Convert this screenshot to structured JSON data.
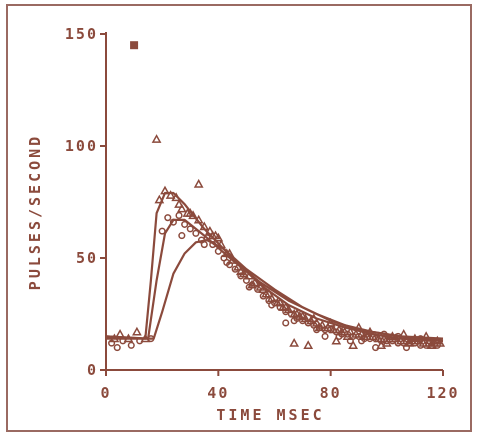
{
  "chart_data": {
    "type": "scatter",
    "title": "",
    "xlabel": "TIME MSEC",
    "ylabel": "PULSES/SECOND",
    "xlim": [
      0,
      120
    ],
    "ylim": [
      0,
      150
    ],
    "xticks": [
      "0",
      "40",
      "80",
      "120"
    ],
    "yticks": [
      "0",
      "50",
      "100",
      "150"
    ],
    "grid": false,
    "legend": "none",
    "colors": {
      "ink": "#8b4a3c",
      "frame": "#9a6a62"
    },
    "series": [
      {
        "kind": "line",
        "values": [
          [
            0,
            15
          ],
          [
            14,
            14
          ],
          [
            16,
            40
          ],
          [
            18,
            70
          ],
          [
            21,
            79
          ],
          [
            24,
            79
          ],
          [
            28,
            74
          ],
          [
            35,
            63
          ],
          [
            45,
            50
          ],
          [
            55,
            38
          ],
          [
            65,
            29
          ],
          [
            75,
            23
          ],
          [
            85,
            19
          ],
          [
            95,
            16
          ],
          [
            105,
            14
          ],
          [
            120,
            13
          ]
        ]
      },
      {
        "kind": "line",
        "values": [
          [
            0,
            15
          ],
          [
            15,
            14
          ],
          [
            18,
            40
          ],
          [
            21,
            61
          ],
          [
            24,
            67
          ],
          [
            28,
            67
          ],
          [
            35,
            60
          ],
          [
            45,
            49
          ],
          [
            55,
            39
          ],
          [
            65,
            31
          ],
          [
            75,
            25
          ],
          [
            85,
            20
          ],
          [
            95,
            17
          ],
          [
            105,
            15
          ],
          [
            120,
            14
          ]
        ]
      },
      {
        "kind": "line",
        "values": [
          [
            0,
            14
          ],
          [
            17,
            14
          ],
          [
            20,
            26
          ],
          [
            24,
            43
          ],
          [
            28,
            52
          ],
          [
            32,
            57
          ],
          [
            36,
            58
          ],
          [
            42,
            54
          ],
          [
            50,
            45
          ],
          [
            60,
            36
          ],
          [
            70,
            28
          ],
          [
            80,
            22
          ],
          [
            90,
            18
          ],
          [
            100,
            16
          ],
          [
            110,
            14
          ],
          [
            120,
            13
          ]
        ]
      },
      {
        "kind": "points",
        "marker": "square",
        "values": [
          [
            10,
            145
          ]
        ]
      },
      {
        "kind": "points",
        "marker": "triangle",
        "values": [
          [
            18,
            103
          ],
          [
            33,
            83
          ],
          [
            3,
            14
          ],
          [
            5,
            16
          ],
          [
            8,
            14
          ],
          [
            11,
            17
          ],
          [
            14,
            14
          ],
          [
            19,
            76
          ],
          [
            21,
            80
          ],
          [
            23,
            78
          ],
          [
            25,
            77
          ],
          [
            27,
            72
          ],
          [
            29,
            70
          ],
          [
            31,
            69
          ],
          [
            33,
            67
          ],
          [
            35,
            64
          ],
          [
            37,
            62
          ],
          [
            39,
            60
          ],
          [
            41,
            56
          ],
          [
            43,
            52
          ],
          [
            45,
            49
          ],
          [
            47,
            46
          ],
          [
            49,
            43
          ],
          [
            51,
            42
          ],
          [
            53,
            39
          ],
          [
            55,
            37
          ],
          [
            57,
            34
          ],
          [
            59,
            32
          ],
          [
            61,
            30
          ],
          [
            63,
            28
          ],
          [
            65,
            27
          ],
          [
            67,
            25
          ],
          [
            69,
            24
          ],
          [
            71,
            23
          ],
          [
            73,
            22
          ],
          [
            75,
            21
          ],
          [
            77,
            20
          ],
          [
            79,
            19
          ],
          [
            81,
            18
          ],
          [
            83,
            18
          ],
          [
            85,
            17
          ],
          [
            87,
            17
          ],
          [
            89,
            16
          ],
          [
            91,
            16
          ],
          [
            93,
            15
          ],
          [
            95,
            15
          ],
          [
            97,
            14
          ],
          [
            99,
            14
          ],
          [
            101,
            14
          ],
          [
            103,
            14
          ],
          [
            105,
            13
          ],
          [
            107,
            13
          ],
          [
            109,
            13
          ],
          [
            111,
            13
          ],
          [
            113,
            12
          ],
          [
            115,
            12
          ],
          [
            117,
            12
          ],
          [
            119,
            12
          ],
          [
            26,
            74
          ],
          [
            30,
            70
          ],
          [
            38,
            60
          ],
          [
            44,
            52
          ],
          [
            52,
            38
          ],
          [
            58,
            34
          ],
          [
            64,
            28
          ],
          [
            70,
            24
          ],
          [
            76,
            19
          ],
          [
            84,
            17
          ],
          [
            92,
            15
          ],
          [
            100,
            12
          ],
          [
            108,
            12
          ],
          [
            116,
            11
          ],
          [
            40,
            59
          ],
          [
            48,
            44
          ],
          [
            56,
            36
          ],
          [
            62,
            30
          ],
          [
            68,
            25
          ],
          [
            74,
            23
          ],
          [
            80,
            21
          ],
          [
            86,
            15
          ],
          [
            94,
            17
          ],
          [
            102,
            15
          ],
          [
            110,
            14
          ],
          [
            118,
            13
          ],
          [
            90,
            19
          ],
          [
            98,
            11
          ],
          [
            106,
            16
          ],
          [
            114,
            15
          ],
          [
            67,
            12
          ],
          [
            72,
            11
          ],
          [
            82,
            13
          ],
          [
            88,
            11
          ]
        ]
      },
      {
        "kind": "points",
        "marker": "circle",
        "values": [
          [
            2,
            12
          ],
          [
            4,
            10
          ],
          [
            6,
            13
          ],
          [
            9,
            11
          ],
          [
            12,
            13
          ],
          [
            16,
            14
          ],
          [
            20,
            62
          ],
          [
            22,
            68
          ],
          [
            24,
            66
          ],
          [
            26,
            69
          ],
          [
            28,
            65
          ],
          [
            30,
            63
          ],
          [
            32,
            61
          ],
          [
            34,
            58
          ],
          [
            36,
            59
          ],
          [
            38,
            56
          ],
          [
            40,
            53
          ],
          [
            42,
            50
          ],
          [
            44,
            47
          ],
          [
            46,
            45
          ],
          [
            48,
            42
          ],
          [
            50,
            40
          ],
          [
            52,
            38
          ],
          [
            54,
            36
          ],
          [
            56,
            33
          ],
          [
            58,
            31
          ],
          [
            60,
            30
          ],
          [
            62,
            28
          ],
          [
            64,
            26
          ],
          [
            66,
            25
          ],
          [
            68,
            23
          ],
          [
            70,
            22
          ],
          [
            72,
            21
          ],
          [
            74,
            20
          ],
          [
            76,
            19
          ],
          [
            78,
            18
          ],
          [
            80,
            18
          ],
          [
            82,
            17
          ],
          [
            84,
            16
          ],
          [
            86,
            16
          ],
          [
            88,
            15
          ],
          [
            90,
            15
          ],
          [
            92,
            14
          ],
          [
            94,
            14
          ],
          [
            96,
            14
          ],
          [
            98,
            13
          ],
          [
            100,
            13
          ],
          [
            102,
            13
          ],
          [
            104,
            12
          ],
          [
            106,
            12
          ],
          [
            108,
            12
          ],
          [
            110,
            12
          ],
          [
            112,
            11
          ],
          [
            114,
            11
          ],
          [
            116,
            11
          ],
          [
            118,
            11
          ],
          [
            27,
            60
          ],
          [
            35,
            56
          ],
          [
            43,
            48
          ],
          [
            51,
            37
          ],
          [
            59,
            29
          ],
          [
            67,
            22
          ],
          [
            75,
            18
          ],
          [
            83,
            15
          ],
          [
            91,
            13
          ],
          [
            99,
            16
          ],
          [
            107,
            10
          ],
          [
            115,
            13
          ],
          [
            64,
            21
          ],
          [
            78,
            15
          ],
          [
            87,
            13
          ],
          [
            96,
            10
          ],
          [
            104,
            15
          ],
          [
            112,
            14
          ]
        ]
      }
    ]
  }
}
